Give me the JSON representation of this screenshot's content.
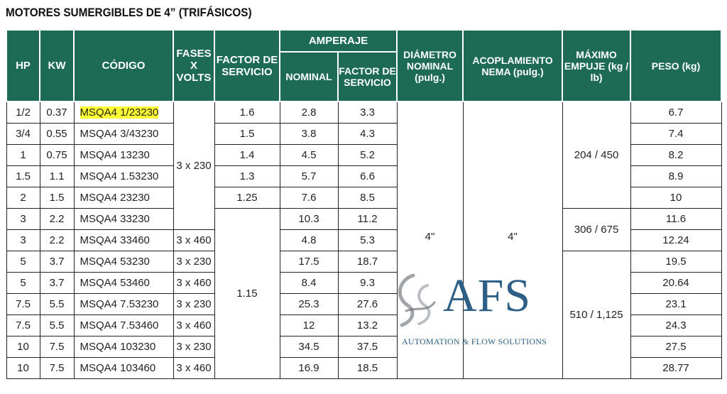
{
  "title": "MOTORES SUMERGIBLES DE 4” (TRIFÁSICOS)",
  "headers": {
    "hp": "HP",
    "kw": "KW",
    "codigo": "CÓDIGO",
    "fases_volts": "FASES X VOLTS",
    "factor_servicio": "FACTOR DE SERVICIO",
    "amperaje": "AMPERAJE",
    "nominal": "NOMINAL",
    "amp_factor_servicio": "FACTOR DE SERVICIO",
    "diametro": "DIÁMETRO NOMINAL (pulg.)",
    "acoplamiento": "ACOPLAMIENTO NEMA (pulg.)",
    "maximo_empuje": "MÁXIMO EMPUJE (kg / lb)",
    "peso": "PESO (kg)"
  },
  "rows": [
    {
      "hp": "1/2",
      "kw": "0.37",
      "codigo": "MSQA4 1/23230",
      "amp_nominal": "2.8",
      "amp_fs": "3.3",
      "peso": "6.7"
    },
    {
      "hp": "3/4",
      "kw": "0.55",
      "codigo": "MSQA4 3/43230",
      "amp_nominal": "3.8",
      "amp_fs": "4.3",
      "peso": "7.4"
    },
    {
      "hp": "1",
      "kw": "0.75",
      "codigo": "MSQA4 13230",
      "amp_nominal": "4.5",
      "amp_fs": "5.2",
      "peso": "8.2"
    },
    {
      "hp": "1.5",
      "kw": "1.1",
      "codigo": "MSQA4 1.53230",
      "amp_nominal": "5.7",
      "amp_fs": "6.6",
      "peso": "8.9"
    },
    {
      "hp": "2",
      "kw": "1.5",
      "codigo": "MSQA4 23230",
      "amp_nominal": "7.6",
      "amp_fs": "8.5",
      "peso": "10"
    },
    {
      "hp": "3",
      "kw": "2.2",
      "codigo": "MSQA4 33230",
      "amp_nominal": "10.3",
      "amp_fs": "11.2",
      "peso": "11.6"
    },
    {
      "hp": "3",
      "kw": "2.2",
      "codigo": "MSQA4 33460",
      "amp_nominal": "4.8",
      "amp_fs": "5.3",
      "peso": "12.24"
    },
    {
      "hp": "5",
      "kw": "3.7",
      "codigo": "MSQA4 53230",
      "amp_nominal": "17.5",
      "amp_fs": "18.7",
      "peso": "19.5"
    },
    {
      "hp": "5",
      "kw": "3.7",
      "codigo": "MSQA4 53460",
      "amp_nominal": "8.4",
      "amp_fs": "9.3",
      "peso": "20.64"
    },
    {
      "hp": "7.5",
      "kw": "5.5",
      "codigo": "MSQA4 7.53230",
      "amp_nominal": "25.3",
      "amp_fs": "27.6",
      "peso": "23.1"
    },
    {
      "hp": "7.5",
      "kw": "5.5",
      "codigo": "MSQA4 7.53460",
      "amp_nominal": "12",
      "amp_fs": "13.2",
      "peso": "24.3"
    },
    {
      "hp": "10",
      "kw": "7.5",
      "codigo": "MSQA4 103230",
      "amp_nominal": "34.5",
      "amp_fs": "37.5",
      "peso": "27.5"
    },
    {
      "hp": "10",
      "kw": "7.5",
      "codigo": "MSQA4 103460",
      "amp_nominal": "16.9",
      "amp_fs": "18.5",
      "peso": "28.77"
    }
  ],
  "fases_volts": {
    "group_a": "3 x 230",
    "r7": "3 x 460",
    "r8": "3 x 230",
    "r9": "3 x 460",
    "r10": "3 x 230",
    "r11": "3 x 460",
    "r12": "3 x 230",
    "r13": "3 x 460"
  },
  "factor_servicio": {
    "r1": "1.6",
    "r2": "1.5",
    "r3": "1.4",
    "r4": "1.3",
    "r5": "1.25",
    "group_b": "1.15"
  },
  "diametro": "4\"",
  "acoplamiento": "4\"",
  "empuje": {
    "group_a": "204 / 450",
    "group_b": "306 / 675",
    "group_c": "510 / 1,125"
  },
  "highlight_color": "#ffff33",
  "header_color": "#1e6b55",
  "logo": {
    "letters": "AFS",
    "tagline": "AUTOMATION & FLOW SOLUTIONS",
    "color": "#2e5f86"
  }
}
